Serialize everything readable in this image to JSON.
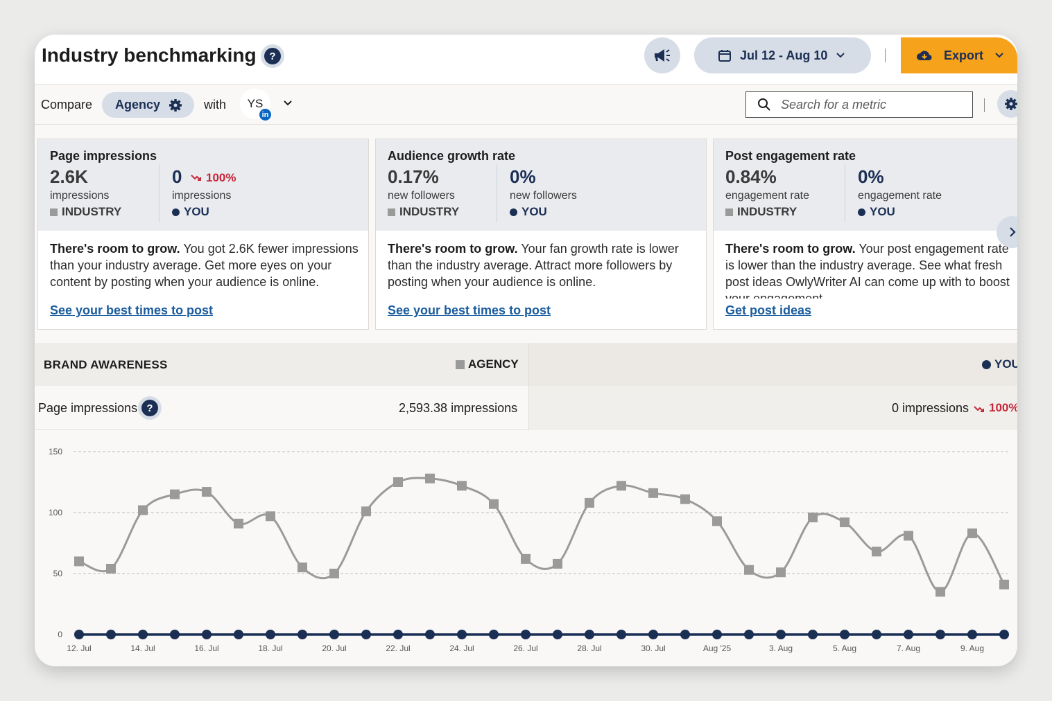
{
  "header": {
    "title": "Industry benchmarking",
    "date_range": "Jul 12 - Aug 10",
    "export_label": "Export"
  },
  "compare": {
    "compare_label": "Compare",
    "group": "Agency",
    "with_label": "with",
    "account_initials": "YS",
    "network_badge": "in",
    "search_placeholder": "Search for a metric"
  },
  "cards": [
    {
      "title": "Page impressions",
      "industry_value": "2.6K",
      "industry_unit": "impressions",
      "industry_label": "INDUSTRY",
      "you_value": "0",
      "you_change": "100%",
      "you_unit": "impressions",
      "you_label": "YOU",
      "body_bold": "There's room to grow.",
      "body": " You got 2.6K fewer impressions than your industry average. Get more eyes on your content by posting when your audience is online.",
      "link": "See your best times to post"
    },
    {
      "title": "Audience growth rate",
      "industry_value": "0.17%",
      "industry_unit": "new followers",
      "industry_label": "INDUSTRY",
      "you_value": "0%",
      "you_unit": "new followers",
      "you_label": "YOU",
      "body_bold": "There's room to grow.",
      "body": " Your fan growth rate is lower than the industry average. Attract more followers by posting when your audience is online.",
      "link": "See your best times to post"
    },
    {
      "title": "Post engagement rate",
      "industry_value": "0.84%",
      "industry_unit": "engagement rate",
      "industry_label": "INDUSTRY",
      "you_value": "0%",
      "you_unit": "engagement rate",
      "you_label": "YOU",
      "body_bold": "There's room to grow.",
      "body": " Your post engagement rate is lower than the industry average. See what fresh post ideas OwlyWriter AI can come up with to boost your engagement",
      "link": "Get post ideas"
    }
  ],
  "brand_awareness": {
    "title": "BRAND AWARENESS",
    "agency_label": "AGENCY",
    "you_label": "YOU",
    "metric_label": "Page impressions",
    "agency_value": "2,593.38 impressions",
    "you_value": "0 impressions",
    "you_change": "100%"
  },
  "colors": {
    "navy": "#1b2f55",
    "export_orange": "#f7a21b",
    "negative_red": "#c6283a",
    "agency_gray": "#9a9a9a"
  },
  "chart_data": {
    "type": "line",
    "x": [
      "12. Jul",
      "13. Jul",
      "14. Jul",
      "15. Jul",
      "16. Jul",
      "17. Jul",
      "18. Jul",
      "19. Jul",
      "20. Jul",
      "21. Jul",
      "22. Jul",
      "23. Jul",
      "24. Jul",
      "25. Jul",
      "26. Jul",
      "27. Jul",
      "28. Jul",
      "29. Jul",
      "30. Jul",
      "31. Jul",
      "Aug '25",
      "2. Aug",
      "3. Aug",
      "4. Aug",
      "5. Aug",
      "6. Aug",
      "7. Aug",
      "8. Aug",
      "9. Aug",
      "10. Aug"
    ],
    "x_tick_labels": [
      "12. Jul",
      "14. Jul",
      "16. Jul",
      "18. Jul",
      "20. Jul",
      "22. Jul",
      "24. Jul",
      "26. Jul",
      "28. Jul",
      "30. Jul",
      "Aug '25",
      "3. Aug",
      "5. Aug",
      "7. Aug",
      "9. Aug"
    ],
    "y_ticks": [
      0,
      50,
      100,
      150
    ],
    "ylim": [
      0,
      150
    ],
    "grid": true,
    "series": [
      {
        "name": "AGENCY",
        "color": "#9a9a9a",
        "marker": "square",
        "values": [
          60,
          54,
          102,
          115,
          117,
          91,
          97,
          55,
          50,
          101,
          125,
          128,
          122,
          107,
          62,
          58,
          108,
          122,
          116,
          111,
          93,
          53,
          51,
          96,
          92,
          68,
          81,
          35,
          83,
          41
        ]
      },
      {
        "name": "YOU",
        "color": "#1b2f55",
        "marker": "circle",
        "values": [
          0,
          0,
          0,
          0,
          0,
          0,
          0,
          0,
          0,
          0,
          0,
          0,
          0,
          0,
          0,
          0,
          0,
          0,
          0,
          0,
          0,
          0,
          0,
          0,
          0,
          0,
          0,
          0,
          0,
          0
        ]
      }
    ]
  }
}
